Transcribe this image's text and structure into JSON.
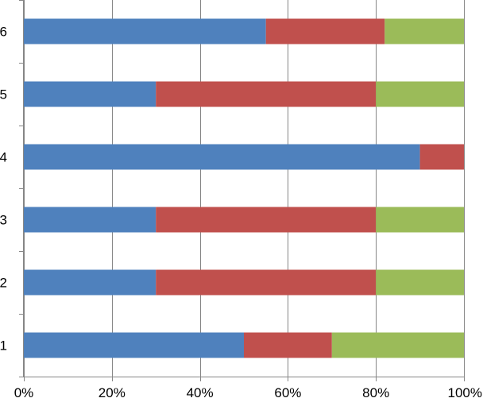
{
  "chart_data": {
    "type": "bar",
    "orientation": "horizontal",
    "stacked": "percent",
    "categories": [
      "1",
      "2",
      "3",
      "4",
      "5",
      "6"
    ],
    "series": [
      {
        "color": "#4f81bd",
        "values": [
          50,
          30,
          30,
          90,
          30,
          55
        ]
      },
      {
        "color": "#c0504d",
        "values": [
          20,
          50,
          50,
          10,
          50,
          27
        ]
      },
      {
        "color": "#9bbb59",
        "values": [
          30,
          20,
          20,
          0,
          20,
          18
        ]
      }
    ],
    "xlim": [
      0,
      100
    ],
    "x_ticks": [
      "0%",
      "20%",
      "40%",
      "60%",
      "80%",
      "100%"
    ],
    "grid": "vertical",
    "legend": "none",
    "title": "",
    "xlabel": "",
    "ylabel": ""
  }
}
